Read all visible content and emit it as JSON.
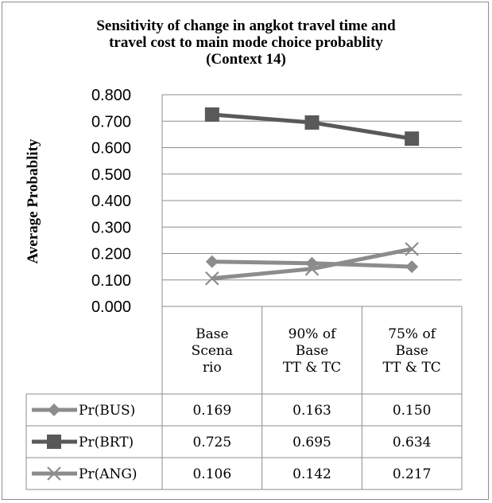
{
  "chart_data": {
    "type": "line",
    "title_lines": [
      "Sensitivity of change in angkot travel time and",
      "travel cost to main mode choice probablity",
      "(Context 14)"
    ],
    "ylabel": "Average Probablity",
    "ylim": [
      0,
      0.8
    ],
    "yticks": [
      "0.000",
      "0.100",
      "0.200",
      "0.300",
      "0.400",
      "0.500",
      "0.600",
      "0.700",
      "0.800"
    ],
    "grid": true,
    "categories": [
      [
        "Base",
        "Scena",
        "rio"
      ],
      [
        "90% of",
        "Base",
        "TT & TC"
      ],
      [
        "75% of",
        "Base",
        "TT & TC"
      ]
    ],
    "series": [
      {
        "name": "Pr(BUS)",
        "marker": "diamond",
        "color": "#8c8c8c",
        "values": [
          0.169,
          0.163,
          0.15
        ],
        "labels": [
          "0.169",
          "0.163",
          "0.150"
        ]
      },
      {
        "name": "Pr(BRT)",
        "marker": "square",
        "color": "#595959",
        "values": [
          0.725,
          0.695,
          0.634
        ],
        "labels": [
          "0.725",
          "0.695",
          "0.634"
        ]
      },
      {
        "name": "Pr(ANG)",
        "marker": "x",
        "color": "#8c8c8c",
        "values": [
          0.106,
          0.142,
          0.217
        ],
        "labels": [
          "0.106",
          "0.142",
          "0.217"
        ]
      }
    ]
  }
}
